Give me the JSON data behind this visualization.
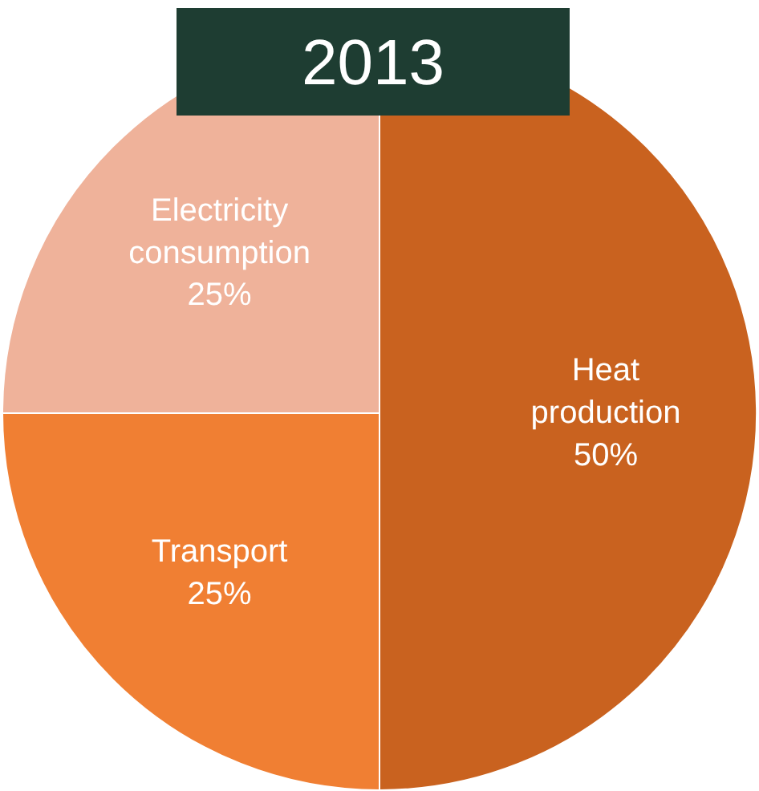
{
  "chart_data": {
    "type": "pie",
    "title": "2013",
    "categories": [
      "Heat production",
      "Transport",
      "Electricity consumption"
    ],
    "values": [
      50,
      25,
      25
    ],
    "value_labels": [
      "50%",
      "25%",
      "25%"
    ],
    "colors": [
      "#c9621f",
      "#f07f33",
      "#efb29a"
    ]
  }
}
